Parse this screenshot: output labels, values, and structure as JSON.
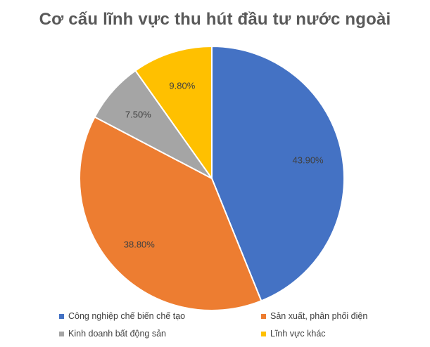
{
  "title": "Cơ cấu lĩnh vực thu hút đầu tư nước ngoài",
  "chart_data": {
    "type": "pie",
    "title": "Cơ cấu lĩnh vực thu hút đầu tư nước ngoài",
    "legend_position": "bottom",
    "slices": [
      {
        "label": "Công nghiệp chế biến chế tạo",
        "value": 43.9,
        "display": "43.90%",
        "color": "#4472C4"
      },
      {
        "label": "Sản xuất, phân phối điện",
        "value": 38.8,
        "display": "38.80%",
        "color": "#ED7D31"
      },
      {
        "label": "Kinh doanh bất động sản",
        "value": 7.5,
        "display": "7.50%",
        "color": "#A5A5A5"
      },
      {
        "label": "Lĩnh vực khác",
        "value": 9.8,
        "display": "9.80%",
        "color": "#FFC000"
      }
    ]
  }
}
